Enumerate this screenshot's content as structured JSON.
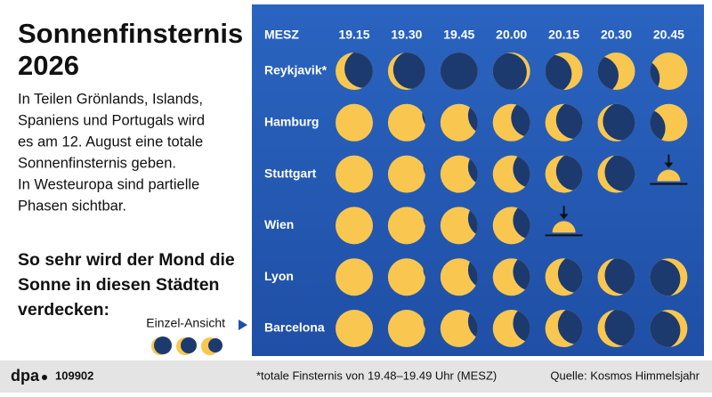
{
  "header": {
    "title_lines": [
      "Sonnenfinsternis",
      "2026"
    ],
    "intro_lines": [
      "In Teilen Grönlands, Islands,",
      "Spaniens und Portugals wird",
      "es am 12. August eine totale",
      "Sonnenfinsternis geben.",
      "In Westeuropa sind partielle",
      "Phasen sichtbar."
    ],
    "question_lines": [
      "So sehr wird der Mond die",
      "Sonne in diesen Städten",
      "verdecken:"
    ]
  },
  "legend": {
    "label": "Einzel-Ansicht"
  },
  "grid": {
    "time_zone": "MESZ",
    "times": [
      "19.15",
      "19.30",
      "19.45",
      "20.00",
      "20.15",
      "20.30",
      "20.45"
    ],
    "cities": [
      {
        "name": "Reykjavik*",
        "moon_position": [
          0.5,
          0.3,
          0,
          -0.2,
          -0.6,
          -0.9,
          -1.5
        ]
      },
      {
        "name": "Hamburg",
        "moon_position": [
          2.2,
          1.85,
          1.5,
          1.0,
          0.6,
          0.3,
          -1.2
        ]
      },
      {
        "name": "Stuttgart",
        "moon_position": [
          2.2,
          1.9,
          1.5,
          1.1,
          0.6,
          0.4
        ]
      },
      {
        "name": "Wien",
        "moon_position": [
          2.2,
          1.9,
          1.5,
          1.1
        ]
      },
      {
        "name": "Lyon",
        "moon_position": [
          2.2,
          1.9,
          1.5,
          1.1,
          0.7,
          0.4,
          -0.4
        ]
      },
      {
        "name": "Barcelona",
        "moon_position": [
          2.2,
          1.9,
          1.5,
          1.1,
          0.7,
          0.4,
          -0.4
        ]
      }
    ]
  },
  "footer": {
    "logo": "dpa",
    "id": "109902",
    "note": "*totale Finsternis von 19.48–19.49 Uhr (MESZ)",
    "source": "Quelle: Kosmos Himmelsjahr"
  }
}
